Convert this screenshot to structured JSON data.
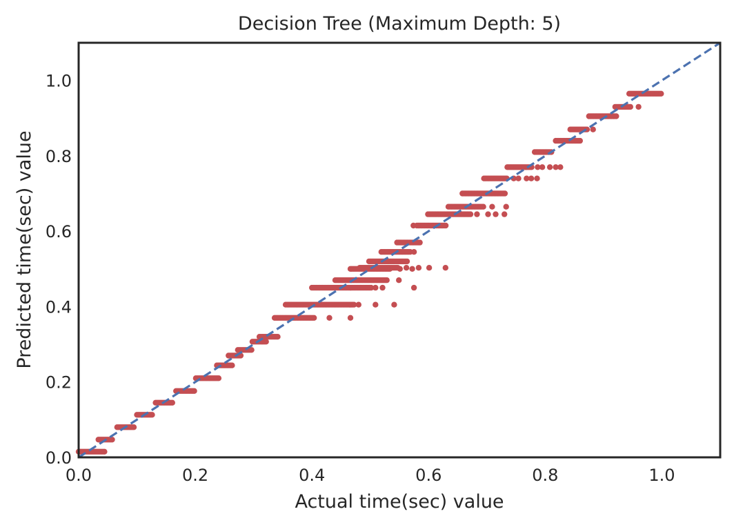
{
  "chart_data": {
    "type": "scatter",
    "title": "Decision Tree (Maximum Depth: 5)",
    "xlabel": "Actual time(sec) value",
    "ylabel": "Predicted time(sec) value",
    "xlim": [
      0.0,
      1.1
    ],
    "ylim": [
      0.0,
      1.1
    ],
    "x_ticks": [
      "0.0",
      "0.2",
      "0.4",
      "0.6",
      "0.8",
      "1.0"
    ],
    "y_ticks": [
      "0.0",
      "0.2",
      "0.4",
      "0.6",
      "0.8",
      "1.0"
    ],
    "grid": false,
    "colors": {
      "points": "#c44e52",
      "reference_line": "#4c72b0",
      "frame": "#262626"
    },
    "reference_line": {
      "style": "dashed",
      "from": [
        0.0,
        0.0
      ],
      "to": [
        1.1,
        1.1
      ]
    },
    "series": [
      {
        "levels": [
          {
            "y": 0.015,
            "x_from": 0.0,
            "x_to": 0.045,
            "extras": []
          },
          {
            "y": 0.047,
            "x_from": 0.034,
            "x_to": 0.058,
            "extras": []
          },
          {
            "y": 0.08,
            "x_from": 0.066,
            "x_to": 0.097,
            "extras": []
          },
          {
            "y": 0.113,
            "x_from": 0.1,
            "x_to": 0.128,
            "extras": []
          },
          {
            "y": 0.145,
            "x_from": 0.132,
            "x_to": 0.162,
            "extras": []
          },
          {
            "y": 0.176,
            "x_from": 0.167,
            "x_to": 0.2,
            "extras": []
          },
          {
            "y": 0.21,
            "x_from": 0.201,
            "x_to": 0.24,
            "extras": []
          },
          {
            "y": 0.244,
            "x_from": 0.237,
            "x_to": 0.265,
            "extras": []
          },
          {
            "y": 0.27,
            "x_from": 0.257,
            "x_to": 0.28,
            "extras": []
          },
          {
            "y": 0.285,
            "x_from": 0.273,
            "x_to": 0.298,
            "extras": []
          },
          {
            "y": 0.307,
            "x_from": 0.298,
            "x_to": 0.322,
            "extras": []
          },
          {
            "y": 0.32,
            "x_from": 0.31,
            "x_to": 0.342,
            "extras": []
          },
          {
            "y": 0.37,
            "x_from": 0.336,
            "x_to": 0.405,
            "extras": [
              0.43,
              0.466
            ]
          },
          {
            "y": 0.405,
            "x_from": 0.355,
            "x_to": 0.472,
            "extras": [
              0.48,
              0.509,
              0.541
            ]
          },
          {
            "y": 0.45,
            "x_from": 0.4,
            "x_to": 0.503,
            "extras": [
              0.509,
              0.521,
              0.575
            ]
          },
          {
            "y": 0.47,
            "x_from": 0.44,
            "x_to": 0.53,
            "extras": [
              0.549
            ]
          },
          {
            "y": 0.5,
            "x_from": 0.466,
            "x_to": 0.535,
            "extras": [
              0.551,
              0.572
            ]
          },
          {
            "y": 0.503,
            "x_from": 0.482,
            "x_to": 0.547,
            "extras": [
              0.562,
              0.583,
              0.601,
              0.629
            ]
          },
          {
            "y": 0.52,
            "x_from": 0.498,
            "x_to": 0.565,
            "extras": []
          },
          {
            "y": 0.545,
            "x_from": 0.519,
            "x_to": 0.57,
            "extras": [
              0.575
            ]
          },
          {
            "y": 0.57,
            "x_from": 0.546,
            "x_to": 0.586,
            "extras": []
          },
          {
            "y": 0.615,
            "x_from": 0.58,
            "x_to": 0.63,
            "extras": [
              0.574
            ]
          },
          {
            "y": 0.645,
            "x_from": 0.599,
            "x_to": 0.672,
            "extras": [
              0.683,
              0.702,
              0.715,
              0.73
            ]
          },
          {
            "y": 0.665,
            "x_from": 0.634,
            "x_to": 0.694,
            "extras": [
              0.709,
              0.733
            ]
          },
          {
            "y": 0.7,
            "x_from": 0.658,
            "x_to": 0.733,
            "extras": []
          },
          {
            "y": 0.74,
            "x_from": 0.695,
            "x_to": 0.734,
            "extras": [
              0.746,
              0.754,
              0.768,
              0.776,
              0.786
            ]
          },
          {
            "y": 0.77,
            "x_from": 0.735,
            "x_to": 0.777,
            "extras": [
              0.787,
              0.795,
              0.808,
              0.818,
              0.826
            ]
          },
          {
            "y": 0.81,
            "x_from": 0.782,
            "x_to": 0.812,
            "extras": []
          },
          {
            "y": 0.84,
            "x_from": 0.818,
            "x_to": 0.861,
            "extras": []
          },
          {
            "y": 0.87,
            "x_from": 0.843,
            "x_to": 0.873,
            "extras": [
              0.882
            ]
          },
          {
            "y": 0.905,
            "x_from": 0.875,
            "x_to": 0.923,
            "extras": []
          },
          {
            "y": 0.93,
            "x_from": 0.92,
            "x_to": 0.947,
            "extras": [
              0.96
            ]
          },
          {
            "y": 0.965,
            "x_from": 0.944,
            "x_to": 1.0,
            "extras": []
          }
        ]
      }
    ]
  }
}
